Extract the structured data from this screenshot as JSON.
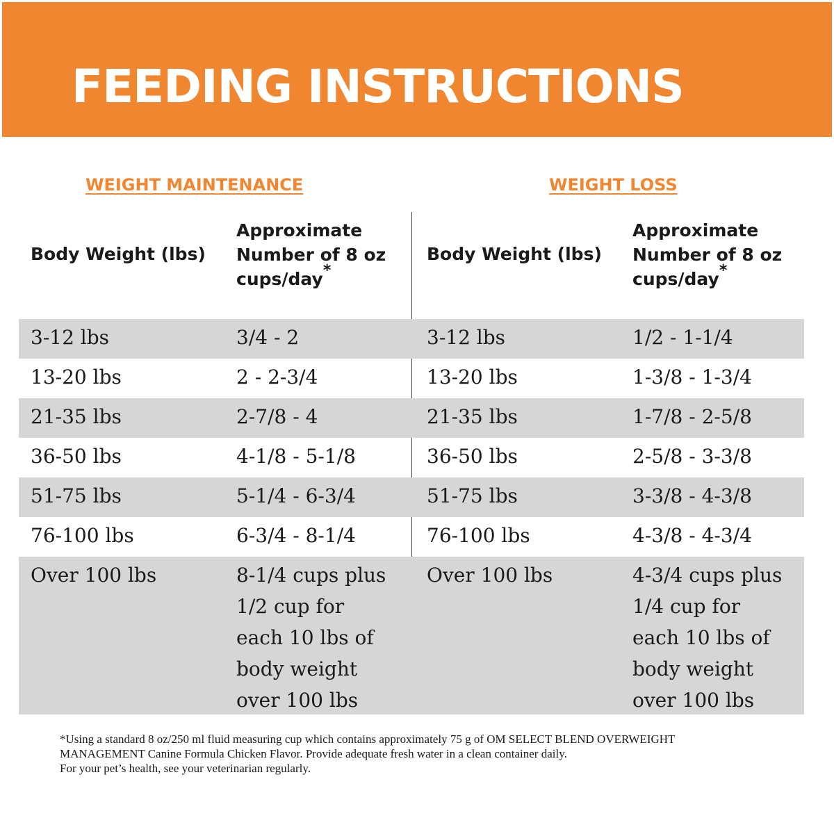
{
  "banner": {
    "title": "FEEDING INSTRUCTIONS"
  },
  "sections": {
    "maintenance": "WEIGHT MAINTENANCE",
    "loss": "WEIGHT LOSS"
  },
  "headers": {
    "body_weight": "Body Weight (lbs)",
    "cups_line1": "Approximate",
    "cups_line2": "Number of 8 oz",
    "cups_line3": "cups/day",
    "asterisk": "*"
  },
  "rows": [
    {
      "weight": "3-12 lbs",
      "maint_cups": "3/4 - 2",
      "loss_weight": "3-12 lbs",
      "loss_cups": "1/2 - 1-1/4"
    },
    {
      "weight": "13-20 lbs",
      "maint_cups": "2 - 2-3/4",
      "loss_weight": "13-20 lbs",
      "loss_cups": "1-3/8 - 1-3/4"
    },
    {
      "weight": "21-35 lbs",
      "maint_cups": "2-7/8 - 4",
      "loss_weight": "21-35 lbs",
      "loss_cups": "1-7/8 - 2-5/8"
    },
    {
      "weight": "36-50 lbs",
      "maint_cups": "4-1/8 - 5-1/8",
      "loss_weight": "36-50 lbs",
      "loss_cups": "2-5/8 - 3-3/8"
    },
    {
      "weight": "51-75 lbs",
      "maint_cups": "5-1/4 - 6-3/4",
      "loss_weight": "51-75 lbs",
      "loss_cups": "3-3/8 - 4-3/8"
    },
    {
      "weight": "76-100 lbs",
      "maint_cups": "6-3/4 - 8-1/4",
      "loss_weight": "76-100 lbs",
      "loss_cups": "4-3/8 - 4-3/4"
    },
    {
      "weight": "Over 100 lbs",
      "maint_cups": "8-1/4 cups plus\n1/2 cup for\neach 10 lbs of\nbody weight\nover 100 lbs",
      "loss_weight": "Over 100 lbs",
      "loss_cups": "4-3/4 cups plus\n1/4 cup for\neach 10 lbs of\nbody weight\nover 100 lbs"
    }
  ],
  "footnote": {
    "line1": "*Using a standard 8 oz/250 ml fluid measuring cup which contains approximately 75 g of OM SELECT BLEND OVERWEIGHT",
    "line2": "MANAGEMENT Canine Formula Chicken Flavor. Provide adequate fresh water in a clean container daily.",
    "line3": "For your pet’s health, see your veterinarian regularly."
  },
  "colors": {
    "banner_orange": "#f18631",
    "row_shade": "#d6d6d6",
    "text": "#1a1a1a"
  }
}
